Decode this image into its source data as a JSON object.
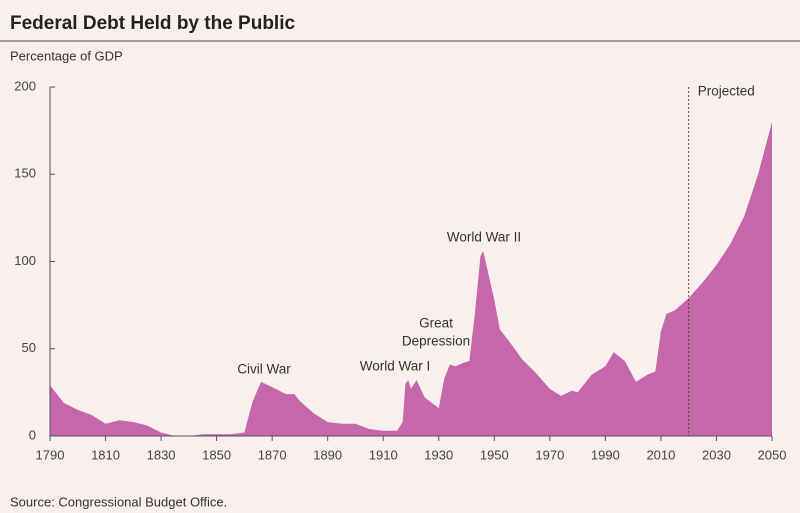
{
  "chart_data": {
    "type": "area",
    "title": "Federal Debt Held by the Public",
    "subtitle": "Percentage of GDP",
    "source": "Source: Congressional Budget Office.",
    "color": "#c767ab",
    "x": [
      1790,
      1795,
      1800,
      1805,
      1810,
      1815,
      1820,
      1825,
      1830,
      1835,
      1840,
      1845,
      1850,
      1855,
      1860,
      1863,
      1866,
      1870,
      1875,
      1878,
      1880,
      1885,
      1890,
      1895,
      1900,
      1905,
      1910,
      1915,
      1917,
      1918,
      1919,
      1920,
      1922,
      1925,
      1930,
      1932,
      1934,
      1936,
      1939,
      1941,
      1943,
      1945,
      1946,
      1948,
      1950,
      1952,
      1955,
      1960,
      1965,
      1970,
      1974,
      1978,
      1980,
      1985,
      1990,
      1993,
      1997,
      2001,
      2005,
      2008,
      2010,
      2012,
      2015,
      2020,
      2025,
      2030,
      2035,
      2040,
      2045,
      2050
    ],
    "values": [
      29,
      19,
      15,
      12,
      7,
      9,
      8,
      6,
      2,
      0,
      0,
      1,
      1,
      1,
      2,
      20,
      31,
      28,
      24,
      24,
      20,
      13,
      8,
      7,
      7,
      4,
      3,
      3,
      8,
      30,
      32,
      27,
      32,
      22,
      16,
      33,
      41,
      40,
      42,
      43,
      70,
      103,
      106,
      92,
      78,
      61,
      55,
      44,
      36,
      27,
      23,
      26,
      25,
      35,
      40,
      48,
      43,
      31,
      35,
      37,
      60,
      70,
      72,
      79,
      88,
      98,
      110,
      126,
      150,
      180
    ],
    "xlim": [
      1790,
      2050
    ],
    "xticks": [
      1790,
      1810,
      1830,
      1850,
      1870,
      1890,
      1910,
      1930,
      1950,
      1970,
      1990,
      2010,
      2030,
      2050
    ],
    "ylim": [
      0,
      200
    ],
    "yticks": [
      0,
      50,
      100,
      150,
      200
    ],
    "projection_start": 2020,
    "projected_label": "Projected",
    "annotations": [
      [
        "Civil War"
      ],
      [
        "World War I"
      ],
      [
        "Great",
        "Depression"
      ],
      [
        "World War II"
      ]
    ]
  }
}
